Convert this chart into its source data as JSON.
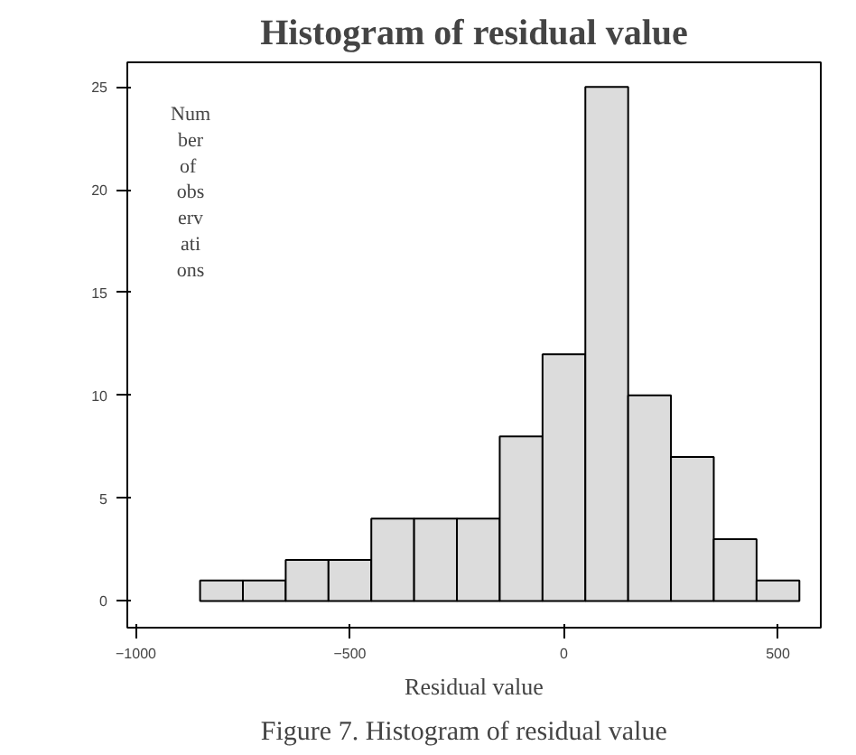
{
  "chart_data": {
    "type": "histogram",
    "title": "Histogram of residual value",
    "xlabel": "Residual value",
    "ylabel": "Number of observations",
    "annotations": [
      "Figure 7.    Histogram of residual value"
    ],
    "bins": [
      -850,
      -750,
      -650,
      -550,
      -450,
      -350,
      -250,
      -150,
      -50,
      50,
      150,
      250,
      350,
      450,
      550
    ],
    "values": [
      1,
      1,
      2,
      2,
      4,
      4,
      4,
      8,
      12,
      25,
      10,
      7,
      3,
      1
    ],
    "color": "#dcdcdc",
    "xlim": [
      -1020,
      600
    ],
    "ylim": [
      -1.3,
      26.2
    ],
    "xticks": [
      -1000,
      -500,
      0,
      500
    ],
    "yticks": [
      0,
      5,
      10,
      15,
      20,
      25
    ],
    "grid": false
  }
}
